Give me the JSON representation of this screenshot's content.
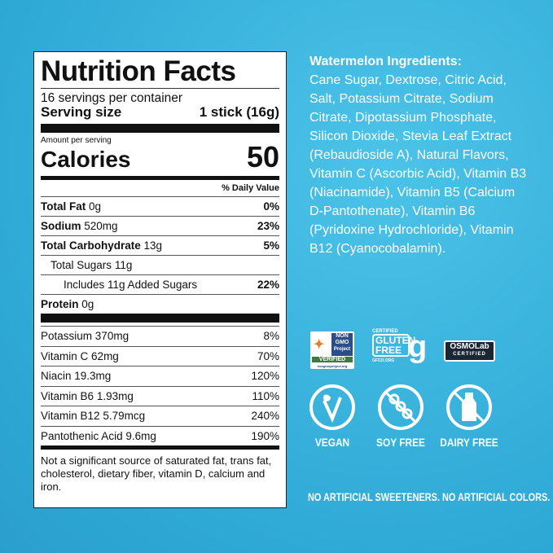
{
  "label": {
    "title": "Nutrition Facts",
    "servings": "16 servings per container",
    "serving_size_label": "Serving size",
    "serving_size_value": "1 stick (16g)",
    "amount_per_serving": "Amount per serving",
    "calories_label": "Calories",
    "calories_value": "50",
    "dv_header": "% Daily Value",
    "rows": [
      {
        "name": "Total Fat",
        "amount": "0g",
        "dv": "0%",
        "bold": true
      },
      {
        "name": "Sodium",
        "amount": "520mg",
        "dv": "23%",
        "bold": true
      },
      {
        "name": "Total Carbohydrate",
        "amount": "13g",
        "dv": "5%",
        "bold": true
      },
      {
        "name": "Total Sugars",
        "amount": "11g",
        "dv": "",
        "indent": 1
      },
      {
        "name": "Includes 11g Added Sugars",
        "amount": "",
        "dv": "22%",
        "indent": 2
      },
      {
        "name": "Protein",
        "amount": "0g",
        "dv": "",
        "bold": true
      }
    ],
    "micros": [
      {
        "name": "Potassium",
        "amount": "370mg",
        "dv": "8%"
      },
      {
        "name": "Vitamin C",
        "amount": "62mg",
        "dv": "70%"
      },
      {
        "name": "Niacin",
        "amount": "19.3mg",
        "dv": "120%"
      },
      {
        "name": "Vitamin B6",
        "amount": "1.93mg",
        "dv": "110%"
      },
      {
        "name": "Vitamin B12",
        "amount": "5.79mcg",
        "dv": "240%"
      },
      {
        "name": "Pantothenic Acid",
        "amount": "9.6mg",
        "dv": "190%"
      }
    ],
    "footnote": "Not a significant source of saturated fat, trans fat, cholesterol, dietary fiber, vitamin D, calcium and iron."
  },
  "ingredients": {
    "title": "Watermelon Ingredients:",
    "text": "Cane Sugar, Dextrose, Citric Acid, Salt, Potassium Citrate, Sodium Citrate, Dipotassium Phosphate, Silicon Dioxide, Stevia Leaf Extract (Rebaudioside A), Natural Flavors, Vitamin C (Ascorbic Acid), Vitamin B3 (Niacinamide), Vitamin B5 (Calcium D-Pantothenate), Vitamin B6 (Pyridoxine Hydrochloride), Vitamin B12 (Cyanocobalamin)."
  },
  "badges": {
    "nongmo": {
      "line1": "NON",
      "line2": "GMO",
      "line3": "Project",
      "verified": "VERIFIED",
      "url": "nongmoproject.org"
    },
    "gluten": {
      "certified": "CERTIFIED",
      "line1": "GLUTEN",
      "line2": "FREE",
      "url": "GFCO.ORG"
    },
    "osmo": {
      "name": "OSMOLab",
      "certified": "CERTIFIED"
    }
  },
  "claims": [
    {
      "label": "VEGAN",
      "icon": "leaf-v-icon"
    },
    {
      "label": "SOY FREE",
      "icon": "no-soy-icon"
    },
    {
      "label": "DAIRY FREE",
      "icon": "no-milk-icon"
    }
  ],
  "footer": "NO ARTIFICIAL SWEETENERS. NO ARTIFICIAL COLORS.",
  "colors": {
    "background": "#35b0dc",
    "label": "#ffffff"
  }
}
